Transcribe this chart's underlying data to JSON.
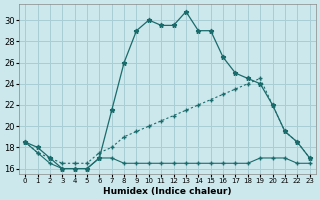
{
  "xlabel": "Humidex (Indice chaleur)",
  "background_color": "#cce8ec",
  "grid_color": "#a8cdd4",
  "line_color": "#1a6b6b",
  "xlim": [
    -0.5,
    23.5
  ],
  "ylim": [
    15.5,
    31.5
  ],
  "xticks": [
    0,
    1,
    2,
    3,
    4,
    5,
    6,
    7,
    8,
    9,
    10,
    11,
    12,
    13,
    14,
    15,
    16,
    17,
    18,
    19,
    20,
    21,
    22,
    23
  ],
  "yticks": [
    16,
    18,
    20,
    22,
    24,
    26,
    28,
    30
  ],
  "line1_x": [
    0,
    1,
    2,
    3,
    4,
    5,
    6,
    7,
    8,
    9,
    10,
    11,
    12,
    13,
    14,
    15,
    16,
    17,
    18,
    19,
    20,
    21,
    22,
    23
  ],
  "line1_y": [
    18.5,
    18.0,
    17.0,
    16.0,
    16.0,
    16.0,
    17.0,
    21.5,
    26.0,
    29.0,
    30.0,
    29.5,
    29.5,
    30.8,
    29.0,
    29.0,
    26.5,
    25.0,
    24.5,
    24.0,
    22.0,
    19.5,
    18.5,
    17.0
  ],
  "line2_x": [
    0,
    1,
    2,
    3,
    4,
    5,
    6,
    7,
    8,
    9,
    10,
    11,
    12,
    13,
    14,
    15,
    16,
    17,
    18,
    19,
    20,
    21,
    22,
    23
  ],
  "line2_y": [
    18.5,
    17.5,
    17.0,
    16.5,
    16.5,
    16.5,
    17.5,
    18.0,
    19.0,
    19.5,
    20.0,
    20.5,
    21.0,
    21.5,
    22.0,
    22.5,
    23.0,
    23.5,
    24.0,
    24.5,
    22.0,
    19.5,
    18.5,
    17.0
  ],
  "line3_x": [
    0,
    1,
    2,
    3,
    4,
    5,
    6,
    7,
    8,
    9,
    10,
    11,
    12,
    13,
    14,
    15,
    16,
    17,
    18,
    19,
    20,
    21,
    22,
    23
  ],
  "line3_y": [
    18.5,
    17.5,
    16.5,
    16.0,
    16.0,
    16.0,
    17.0,
    17.0,
    16.5,
    16.5,
    16.5,
    16.5,
    16.5,
    16.5,
    16.5,
    16.5,
    16.5,
    16.5,
    16.5,
    17.0,
    17.0,
    17.0,
    16.5,
    16.5
  ]
}
